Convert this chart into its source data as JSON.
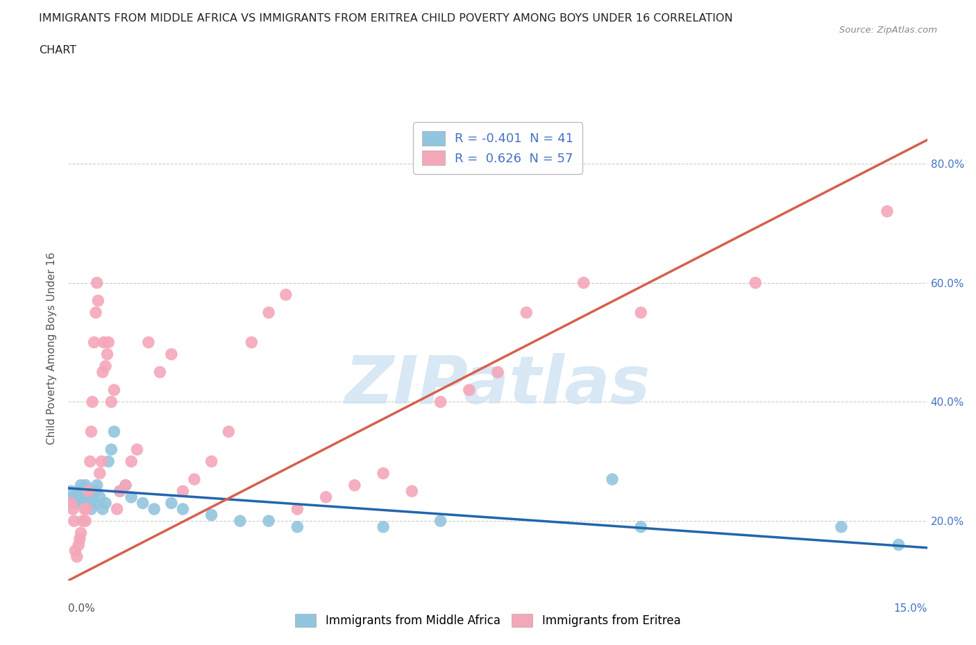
{
  "title_line1": "IMMIGRANTS FROM MIDDLE AFRICA VS IMMIGRANTS FROM ERITREA CHILD POVERTY AMONG BOYS UNDER 16 CORRELATION",
  "title_line2": "CHART",
  "source": "Source: ZipAtlas.com",
  "ylabel": "Child Poverty Among Boys Under 16",
  "xlim": [
    0.0,
    15.0
  ],
  "ylim": [
    10.0,
    88.0
  ],
  "xticks": [
    0.0,
    2.5,
    5.0,
    7.5,
    10.0,
    12.5,
    15.0
  ],
  "xticklabels_bottom_left": "0.0%",
  "xticklabels_bottom_right": "15.0%",
  "yticks": [
    20.0,
    40.0,
    60.0,
    80.0
  ],
  "yticklabels": [
    "20.0%",
    "40.0%",
    "60.0%",
    "80.0%"
  ],
  "blue_color": "#92c5de",
  "pink_color": "#f4a7b9",
  "blue_line_color": "#2166ac",
  "pink_line_color": "#d6604d",
  "legend_R_blue": "-0.401",
  "legend_N_blue": "41",
  "legend_R_pink": "0.626",
  "legend_N_pink": "57",
  "legend_label_blue": "Immigrants from Middle Africa",
  "legend_label_pink": "Immigrants from Eritrea",
  "watermark": "ZIPatlas",
  "watermark_color": "#c8dff0",
  "grid_color": "#cccccc",
  "blue_x": [
    0.05,
    0.08,
    0.12,
    0.15,
    0.18,
    0.2,
    0.22,
    0.25,
    0.28,
    0.3,
    0.32,
    0.35,
    0.38,
    0.4,
    0.42,
    0.45,
    0.48,
    0.5,
    0.55,
    0.6,
    0.65,
    0.7,
    0.75,
    0.8,
    0.9,
    1.0,
    1.1,
    1.3,
    1.5,
    1.8,
    2.0,
    2.5,
    3.0,
    3.5,
    4.0,
    5.5,
    6.5,
    9.5,
    10.0,
    13.5,
    14.5
  ],
  "blue_y": [
    25,
    24,
    23,
    24,
    25,
    23,
    26,
    24,
    25,
    26,
    24,
    25,
    23,
    22,
    24,
    23,
    25,
    26,
    24,
    22,
    23,
    30,
    32,
    35,
    25,
    26,
    24,
    23,
    22,
    23,
    22,
    21,
    20,
    20,
    19,
    19,
    20,
    27,
    19,
    19,
    16
  ],
  "pink_x": [
    0.05,
    0.08,
    0.1,
    0.12,
    0.15,
    0.18,
    0.2,
    0.22,
    0.25,
    0.28,
    0.3,
    0.32,
    0.35,
    0.38,
    0.4,
    0.42,
    0.45,
    0.48,
    0.5,
    0.52,
    0.55,
    0.58,
    0.6,
    0.62,
    0.65,
    0.68,
    0.7,
    0.75,
    0.8,
    0.85,
    0.9,
    1.0,
    1.1,
    1.2,
    1.4,
    1.6,
    1.8,
    2.0,
    2.2,
    2.5,
    2.8,
    3.2,
    3.5,
    3.8,
    4.0,
    4.5,
    5.0,
    5.5,
    6.0,
    6.5,
    7.0,
    7.5,
    8.0,
    9.0,
    10.0,
    12.0,
    14.3
  ],
  "pink_y": [
    23,
    22,
    20,
    15,
    14,
    16,
    17,
    18,
    20,
    22,
    20,
    22,
    25,
    30,
    35,
    40,
    50,
    55,
    60,
    57,
    28,
    30,
    45,
    50,
    46,
    48,
    50,
    40,
    42,
    22,
    25,
    26,
    30,
    32,
    50,
    45,
    48,
    25,
    27,
    30,
    35,
    50,
    55,
    58,
    22,
    24,
    26,
    28,
    25,
    40,
    42,
    45,
    55,
    60,
    55,
    60,
    72
  ],
  "blue_line_x0": 0.0,
  "blue_line_y0": 25.5,
  "blue_line_x1": 15.0,
  "blue_line_y1": 15.5,
  "pink_line_x0": 0.0,
  "pink_line_y0": 10.0,
  "pink_line_x1": 15.0,
  "pink_line_y1": 84.0
}
